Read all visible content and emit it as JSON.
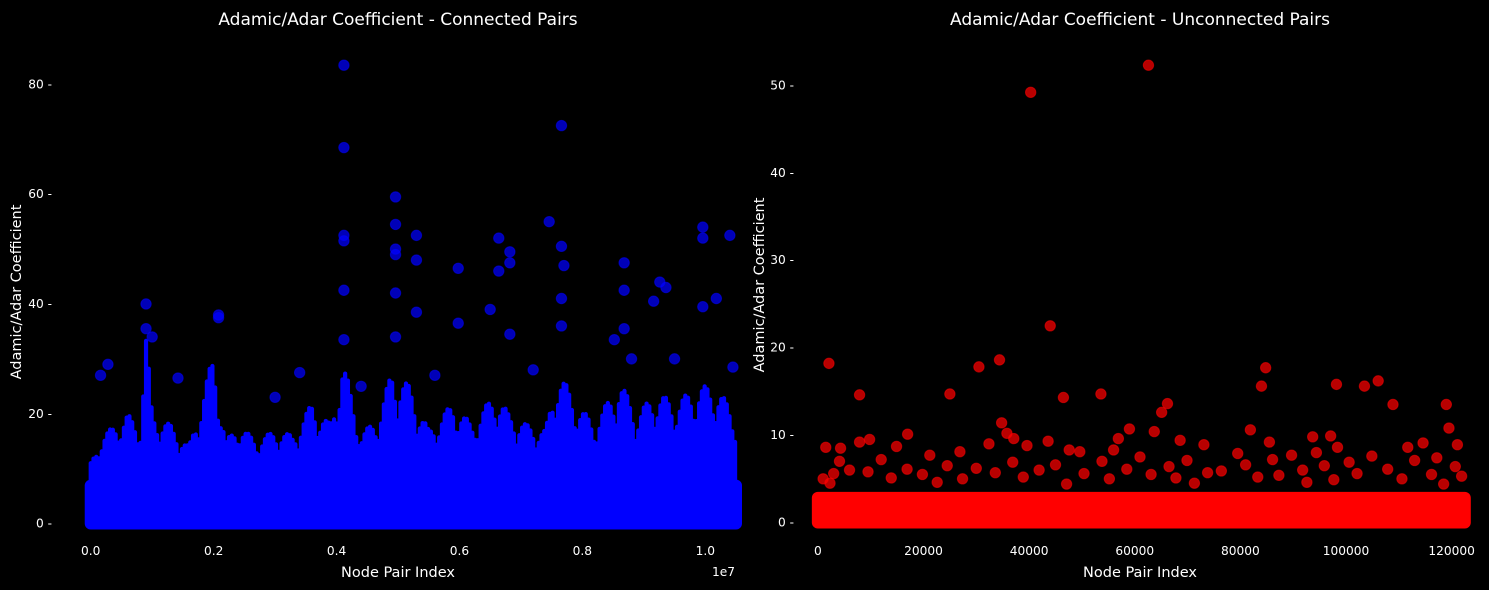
{
  "chart_data": [
    {
      "type": "scatter",
      "title": "Adamic/Adar Coefficient - Connected Pairs",
      "xlabel": "Node Pair Index",
      "ylabel": "Adamic/Adar Coefficient",
      "x_offset_label": "1e7",
      "xlim": [
        -0.05,
        1.05
      ],
      "ylim": [
        -3,
        87
      ],
      "x_ticks": [
        0.0,
        0.2,
        0.4,
        0.6,
        0.8,
        1.0
      ],
      "x_tick_labels": [
        "0.0",
        "0.2",
        "0.4",
        "0.6",
        "0.8",
        "1.0"
      ],
      "y_ticks": [
        0,
        20,
        40,
        60,
        80
      ],
      "y_tick_labels": [
        "0",
        "20",
        "40",
        "60",
        "80"
      ],
      "color": "#0000ff",
      "grid": false,
      "baseline": {
        "x_start": 0.0,
        "x_end": 1.05,
        "y_max": 8
      },
      "columns": [
        {
          "x": 0.0,
          "y": 11
        },
        {
          "x": 0.02,
          "y": 16
        },
        {
          "x": 0.04,
          "y": 18
        },
        {
          "x": 0.06,
          "y": 20
        },
        {
          "x": 0.08,
          "y": 17
        },
        {
          "x": 0.09,
          "y": 35
        },
        {
          "x": 0.1,
          "y": 20
        },
        {
          "x": 0.13,
          "y": 18
        },
        {
          "x": 0.16,
          "y": 14
        },
        {
          "x": 0.2,
          "y": 31
        },
        {
          "x": 0.22,
          "y": 15
        },
        {
          "x": 0.24,
          "y": 18
        },
        {
          "x": 0.27,
          "y": 15
        },
        {
          "x": 0.3,
          "y": 17
        },
        {
          "x": 0.33,
          "y": 16
        },
        {
          "x": 0.36,
          "y": 22
        },
        {
          "x": 0.39,
          "y": 18
        },
        {
          "x": 0.41,
          "y": 30
        },
        {
          "x": 0.44,
          "y": 16
        },
        {
          "x": 0.47,
          "y": 20
        },
        {
          "x": 0.49,
          "y": 28
        },
        {
          "x": 0.52,
          "y": 25
        },
        {
          "x": 0.55,
          "y": 17
        },
        {
          "x": 0.59,
          "y": 22
        },
        {
          "x": 0.62,
          "y": 18
        },
        {
          "x": 0.66,
          "y": 24
        },
        {
          "x": 0.68,
          "y": 20
        },
        {
          "x": 0.71,
          "y": 18
        },
        {
          "x": 0.74,
          "y": 17
        },
        {
          "x": 0.76,
          "y": 28
        },
        {
          "x": 0.79,
          "y": 22
        },
        {
          "x": 0.82,
          "y": 18
        },
        {
          "x": 0.86,
          "y": 26
        },
        {
          "x": 0.89,
          "y": 20
        },
        {
          "x": 0.92,
          "y": 24
        },
        {
          "x": 0.95,
          "y": 22
        },
        {
          "x": 0.99,
          "y": 25
        },
        {
          "x": 1.02,
          "y": 25
        },
        {
          "x": 1.045,
          "y": 20
        }
      ],
      "outliers": [
        {
          "x": 0.412,
          "y": 83.5
        },
        {
          "x": 0.412,
          "y": 68.5
        },
        {
          "x": 0.766,
          "y": 72.5
        },
        {
          "x": 0.496,
          "y": 59.5
        },
        {
          "x": 0.746,
          "y": 55
        },
        {
          "x": 0.496,
          "y": 54.5
        },
        {
          "x": 0.996,
          "y": 54
        },
        {
          "x": 0.412,
          "y": 52.5
        },
        {
          "x": 0.53,
          "y": 52.5
        },
        {
          "x": 1.04,
          "y": 52.5
        },
        {
          "x": 0.996,
          "y": 52
        },
        {
          "x": 0.664,
          "y": 52
        },
        {
          "x": 0.412,
          "y": 51.5
        },
        {
          "x": 0.766,
          "y": 50.5
        },
        {
          "x": 0.496,
          "y": 50
        },
        {
          "x": 0.682,
          "y": 49.5
        },
        {
          "x": 0.496,
          "y": 49
        },
        {
          "x": 0.53,
          "y": 48
        },
        {
          "x": 0.868,
          "y": 47.5
        },
        {
          "x": 0.682,
          "y": 47.5
        },
        {
          "x": 0.77,
          "y": 47
        },
        {
          "x": 0.598,
          "y": 46.5
        },
        {
          "x": 0.664,
          "y": 46
        },
        {
          "x": 0.926,
          "y": 44
        },
        {
          "x": 0.412,
          "y": 42.5
        },
        {
          "x": 0.936,
          "y": 43
        },
        {
          "x": 0.496,
          "y": 42
        },
        {
          "x": 0.868,
          "y": 42.5
        },
        {
          "x": 0.766,
          "y": 41
        },
        {
          "x": 1.018,
          "y": 41
        },
        {
          "x": 0.916,
          "y": 40.5
        },
        {
          "x": 0.09,
          "y": 40
        },
        {
          "x": 0.996,
          "y": 39.5
        },
        {
          "x": 0.65,
          "y": 39
        },
        {
          "x": 0.53,
          "y": 38.5
        },
        {
          "x": 0.208,
          "y": 38
        },
        {
          "x": 0.208,
          "y": 37.5
        },
        {
          "x": 0.598,
          "y": 36.5
        },
        {
          "x": 0.09,
          "y": 35.5
        },
        {
          "x": 0.766,
          "y": 36
        },
        {
          "x": 0.868,
          "y": 35.5
        },
        {
          "x": 0.496,
          "y": 34
        },
        {
          "x": 0.682,
          "y": 34.5
        },
        {
          "x": 0.1,
          "y": 34
        },
        {
          "x": 0.412,
          "y": 33.5
        },
        {
          "x": 0.852,
          "y": 33.5
        },
        {
          "x": 0.3,
          "y": 23
        },
        {
          "x": 0.028,
          "y": 29
        },
        {
          "x": 0.016,
          "y": 27
        },
        {
          "x": 0.142,
          "y": 26.5
        },
        {
          "x": 0.34,
          "y": 27.5
        },
        {
          "x": 0.56,
          "y": 27
        },
        {
          "x": 0.88,
          "y": 30
        },
        {
          "x": 0.95,
          "y": 30
        },
        {
          "x": 1.045,
          "y": 28.5
        },
        {
          "x": 0.44,
          "y": 25
        },
        {
          "x": 0.72,
          "y": 28
        }
      ]
    },
    {
      "type": "scatter",
      "title": "Adamic/Adar Coefficient - Unconnected Pairs",
      "xlabel": "Node Pair Index",
      "ylabel": "Adamic/Adar Coefficient",
      "xlim": [
        -3000,
        125000
      ],
      "ylim": [
        -2,
        54.5
      ],
      "x_ticks": [
        0,
        20000,
        40000,
        60000,
        80000,
        100000,
        120000
      ],
      "x_tick_labels": [
        "0",
        "20000",
        "40000",
        "60000",
        "80000",
        "100000",
        "120000"
      ],
      "y_ticks": [
        0,
        10,
        20,
        30,
        40,
        50
      ],
      "y_tick_labels": [
        "0",
        "10",
        "20",
        "30",
        "40",
        "50"
      ],
      "color": "#ff0000",
      "grid": false,
      "baseline": {
        "x_start": 0,
        "x_end": 122500,
        "y_max": 3.5
      },
      "columns": [],
      "outliers": [
        {
          "x": 62600,
          "y": 52.3
        },
        {
          "x": 40300,
          "y": 49.2
        },
        {
          "x": 44000,
          "y": 22.5
        },
        {
          "x": 2100,
          "y": 18.2
        },
        {
          "x": 34400,
          "y": 18.6
        },
        {
          "x": 30500,
          "y": 17.8
        },
        {
          "x": 84800,
          "y": 17.7
        },
        {
          "x": 106100,
          "y": 16.2
        },
        {
          "x": 84000,
          "y": 15.6
        },
        {
          "x": 98200,
          "y": 15.8
        },
        {
          "x": 103500,
          "y": 15.6
        },
        {
          "x": 7900,
          "y": 14.6
        },
        {
          "x": 25000,
          "y": 14.7
        },
        {
          "x": 53600,
          "y": 14.7
        },
        {
          "x": 46500,
          "y": 14.3
        },
        {
          "x": 66200,
          "y": 13.6
        },
        {
          "x": 119000,
          "y": 13.5
        },
        {
          "x": 108900,
          "y": 13.5
        },
        {
          "x": 65100,
          "y": 12.6
        },
        {
          "x": 34800,
          "y": 11.4
        },
        {
          "x": 119500,
          "y": 10.8
        },
        {
          "x": 59000,
          "y": 10.7
        },
        {
          "x": 81900,
          "y": 10.6
        },
        {
          "x": 63700,
          "y": 10.4
        },
        {
          "x": 17000,
          "y": 10.1
        },
        {
          "x": 35800,
          "y": 10.2
        },
        {
          "x": 97100,
          "y": 9.9
        },
        {
          "x": 9800,
          "y": 9.5
        },
        {
          "x": 37100,
          "y": 9.6
        },
        {
          "x": 68600,
          "y": 9.4
        },
        {
          "x": 93700,
          "y": 9.8
        },
        {
          "x": 7900,
          "y": 9.2
        },
        {
          "x": 43600,
          "y": 9.3
        },
        {
          "x": 56900,
          "y": 9.6
        },
        {
          "x": 85500,
          "y": 9.2
        },
        {
          "x": 114600,
          "y": 9.1
        },
        {
          "x": 32400,
          "y": 9.0
        },
        {
          "x": 39600,
          "y": 8.8
        },
        {
          "x": 1500,
          "y": 8.6
        },
        {
          "x": 4300,
          "y": 8.5
        },
        {
          "x": 14900,
          "y": 8.7
        },
        {
          "x": 47600,
          "y": 8.3
        },
        {
          "x": 56000,
          "y": 8.3
        },
        {
          "x": 73100,
          "y": 8.9
        },
        {
          "x": 98400,
          "y": 8.6
        },
        {
          "x": 111700,
          "y": 8.6
        },
        {
          "x": 121100,
          "y": 8.9
        },
        {
          "x": 26900,
          "y": 8.1
        },
        {
          "x": 49600,
          "y": 8.1
        },
        {
          "x": 79500,
          "y": 7.9
        },
        {
          "x": 94400,
          "y": 8.0
        },
        {
          "x": 21200,
          "y": 7.7
        },
        {
          "x": 61000,
          "y": 7.5
        },
        {
          "x": 89700,
          "y": 7.7
        },
        {
          "x": 104900,
          "y": 7.6
        },
        {
          "x": 117200,
          "y": 7.4
        },
        {
          "x": 4100,
          "y": 7.0
        },
        {
          "x": 12000,
          "y": 7.2
        },
        {
          "x": 36900,
          "y": 6.9
        },
        {
          "x": 53800,
          "y": 7.0
        },
        {
          "x": 69900,
          "y": 7.1
        },
        {
          "x": 86100,
          "y": 7.2
        },
        {
          "x": 100600,
          "y": 6.9
        },
        {
          "x": 113000,
          "y": 7.1
        },
        {
          "x": 24500,
          "y": 6.5
        },
        {
          "x": 45000,
          "y": 6.6
        },
        {
          "x": 66500,
          "y": 6.4
        },
        {
          "x": 81000,
          "y": 6.6
        },
        {
          "x": 95900,
          "y": 6.5
        },
        {
          "x": 120700,
          "y": 6.4
        },
        {
          "x": 6000,
          "y": 6.0
        },
        {
          "x": 16900,
          "y": 6.1
        },
        {
          "x": 30000,
          "y": 6.2
        },
        {
          "x": 41900,
          "y": 6.0
        },
        {
          "x": 58500,
          "y": 6.1
        },
        {
          "x": 76400,
          "y": 5.9
        },
        {
          "x": 91800,
          "y": 6.0
        },
        {
          "x": 107900,
          "y": 6.1
        },
        {
          "x": 3000,
          "y": 5.6
        },
        {
          "x": 9500,
          "y": 5.8
        },
        {
          "x": 19800,
          "y": 5.5
        },
        {
          "x": 33600,
          "y": 5.7
        },
        {
          "x": 50400,
          "y": 5.6
        },
        {
          "x": 63100,
          "y": 5.5
        },
        {
          "x": 73800,
          "y": 5.7
        },
        {
          "x": 87300,
          "y": 5.4
        },
        {
          "x": 102100,
          "y": 5.6
        },
        {
          "x": 116200,
          "y": 5.5
        },
        {
          "x": 1000,
          "y": 5.0
        },
        {
          "x": 13900,
          "y": 5.1
        },
        {
          "x": 27400,
          "y": 5.0
        },
        {
          "x": 38900,
          "y": 5.2
        },
        {
          "x": 55200,
          "y": 5.0
        },
        {
          "x": 67800,
          "y": 5.1
        },
        {
          "x": 83300,
          "y": 5.2
        },
        {
          "x": 97700,
          "y": 4.9
        },
        {
          "x": 110600,
          "y": 5.0
        },
        {
          "x": 121900,
          "y": 5.3
        },
        {
          "x": 2300,
          "y": 4.5
        },
        {
          "x": 22600,
          "y": 4.6
        },
        {
          "x": 47100,
          "y": 4.4
        },
        {
          "x": 71300,
          "y": 4.5
        },
        {
          "x": 92600,
          "y": 4.6
        },
        {
          "x": 118500,
          "y": 4.4
        }
      ]
    }
  ]
}
